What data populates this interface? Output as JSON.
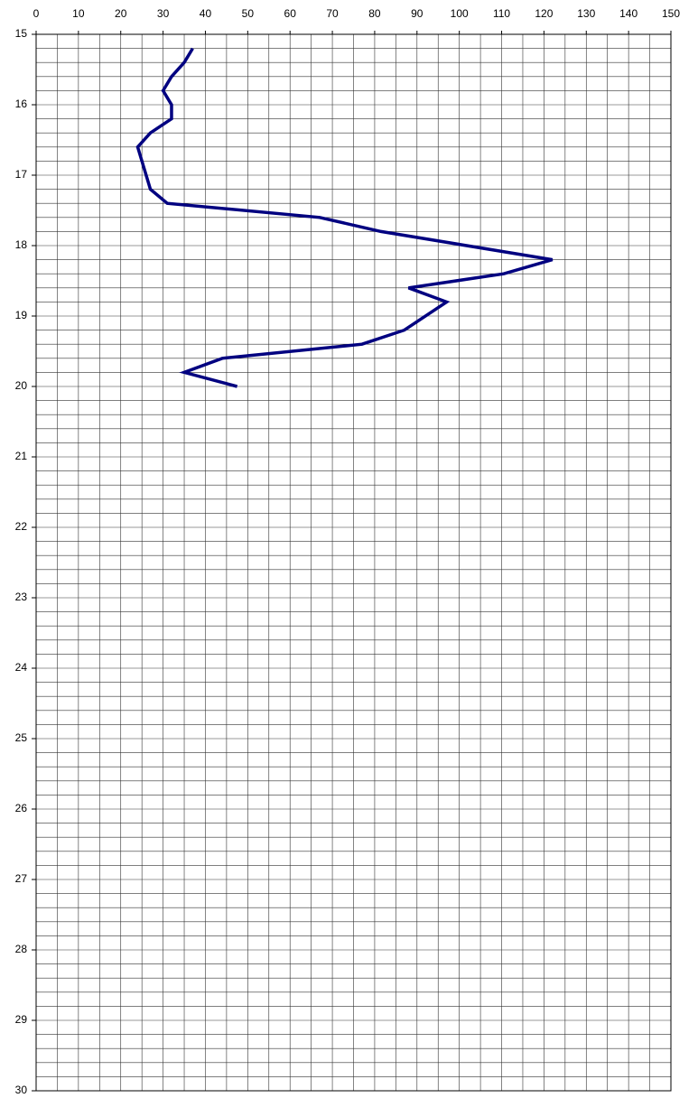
{
  "chart_data": {
    "type": "line",
    "xlim": [
      0,
      150
    ],
    "xticks": [
      0,
      10,
      20,
      30,
      40,
      50,
      60,
      70,
      80,
      90,
      100,
      110,
      120,
      130,
      140,
      150
    ],
    "ylim": [
      15,
      30
    ],
    "yticks": [
      15,
      16,
      17,
      18,
      19,
      20,
      21,
      22,
      23,
      24,
      25,
      26,
      27,
      28,
      29,
      30
    ],
    "y_inverted": true,
    "x_axis_position": "top",
    "grid": true,
    "xminorticks": [
      5,
      15,
      25,
      35,
      45,
      55,
      65,
      75,
      85,
      95,
      105,
      115,
      125,
      135,
      145
    ],
    "yminorticks": [
      15.2,
      15.4,
      15.6,
      15.8,
      16.2,
      16.4,
      16.6,
      16.8,
      17.2,
      17.4,
      17.6,
      17.8,
      18.2,
      18.4,
      18.6,
      18.8,
      19.2,
      19.4,
      19.6,
      19.8,
      20.2,
      20.4,
      20.6,
      20.8,
      21.2,
      21.4,
      21.6,
      21.8,
      22.2,
      22.4,
      22.6,
      22.8,
      23.2,
      23.4,
      23.6,
      23.8,
      24.2,
      24.4,
      24.6,
      24.8,
      25.2,
      25.4,
      25.6,
      25.8,
      26.2,
      26.4,
      26.6,
      26.8,
      27.2,
      27.4,
      27.6,
      27.8,
      28.2,
      28.4,
      28.6,
      28.8,
      29.2,
      29.4,
      29.6,
      29.8
    ],
    "series": [
      {
        "color": "#000080",
        "x": [
          37,
          35,
          32,
          30,
          32,
          32,
          27,
          24,
          27,
          31,
          67,
          81.5,
          122,
          110.5,
          88,
          97,
          87,
          77,
          44,
          35,
          47.5
        ],
        "values": [
          15.2,
          15.4,
          15.6,
          15.8,
          16.0,
          16.2,
          16.4,
          16.6,
          17.2,
          17.4,
          17.6,
          17.8,
          18.2,
          18.4,
          18.6,
          18.8,
          19.2,
          19.4,
          19.6,
          19.8,
          20.0
        ]
      }
    ]
  }
}
